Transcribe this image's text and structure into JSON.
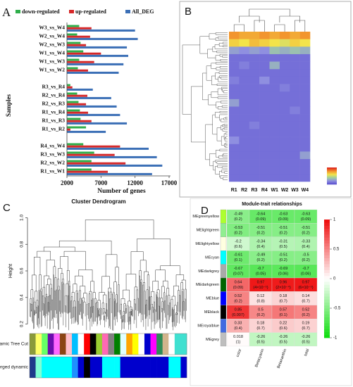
{
  "chart_data": [
    {
      "type": "bar",
      "orientation": "horizontal",
      "panel": "A",
      "ylabel": "Samples",
      "xlabel": "Number of genes",
      "categories": [
        "W3_vs_W4",
        "W2_vs_W4",
        "W2_vs_W3",
        "W1_vs_W4",
        "W1_vs_W3",
        "W1_vs_W2",
        null,
        "R3_vs_R4",
        "R2_vs_R4",
        "R2_vs_R3",
        "R1_vs_R4",
        "R1_vs_R3",
        "R1_vs_R2",
        null,
        "R4_vs_W4",
        "R3_vs_W3",
        "R2_vs_W2",
        "R1_vs_W1"
      ],
      "series": [
        {
          "name": "down-regulated",
          "color": "#2fae4a",
          "values": [
            3800,
            3500,
            4000,
            4400,
            3800,
            3600,
            null,
            2500,
            3500,
            3700,
            3900,
            4000,
            4800,
            null,
            4400,
            6000,
            5600,
            5600
          ]
        },
        {
          "name": "up-regulated",
          "color": "#d62728",
          "values": [
            5600,
            5400,
            4800,
            7000,
            6000,
            5100,
            null,
            2800,
            5000,
            4800,
            5100,
            5600,
            2500,
            null,
            9800,
            9000,
            10600,
            8000
          ]
        },
        {
          "name": "All_DEG",
          "color": "#3b6fb6",
          "values": [
            12000,
            12400,
            10800,
            11000,
            10300,
            9600,
            null,
            5800,
            8500,
            9300,
            9800,
            10800,
            7700,
            null,
            14000,
            15200,
            16000,
            14500
          ]
        }
      ],
      "xlim": [
        2000,
        17000
      ],
      "xticks": [
        2000,
        7000,
        12000,
        17000
      ],
      "legend": "top"
    },
    {
      "type": "heatmap",
      "panel": "B",
      "columns": [
        "R1",
        "R2",
        "R3",
        "R4",
        "W1",
        "W2",
        "W3",
        "W4"
      ],
      "matrix": [
        [
          0.6,
          0.5,
          0.5,
          0.6,
          0.5,
          0.6,
          0.5,
          0.6
        ],
        [
          0.3,
          0.2,
          0.4,
          0.3,
          0.2,
          0.1,
          0.3,
          0.2
        ],
        [
          -0.5,
          -0.6,
          -0.5,
          -0.6,
          -0.3,
          -0.4,
          -0.3,
          -0.4
        ],
        [
          -0.8,
          -0.8,
          -0.8,
          -0.8,
          -0.8,
          -0.8,
          -0.8,
          -0.8
        ],
        [
          -0.8,
          -0.7,
          -0.8,
          -0.8,
          -0.4,
          -0.8,
          -0.8,
          -0.8
        ],
        [
          -0.8,
          -0.8,
          -0.8,
          -0.8,
          -0.8,
          -0.8,
          -0.8,
          -0.8
        ],
        [
          -0.7,
          -0.8,
          -0.8,
          -0.6,
          -0.8,
          -0.8,
          -0.8,
          -0.8
        ],
        [
          -0.8,
          -0.8,
          -0.8,
          -0.8,
          -0.8,
          -0.7,
          -0.8,
          -0.8
        ],
        [
          -0.8,
          -0.8,
          -0.8,
          -0.8,
          -0.8,
          -0.8,
          -0.8,
          -0.8
        ],
        [
          -0.5,
          -0.8,
          -0.8,
          -0.8,
          -0.8,
          -0.8,
          -0.8,
          -0.8
        ],
        [
          -0.8,
          -0.8,
          -0.8,
          -0.8,
          -0.8,
          -0.8,
          -0.7,
          -0.8
        ],
        [
          -0.8,
          -0.8,
          -0.8,
          -0.8,
          -0.8,
          -0.8,
          -0.8,
          -0.8
        ],
        [
          -0.8,
          -0.8,
          -0.7,
          -0.8,
          -0.8,
          -0.8,
          -0.8,
          -0.8
        ],
        [
          -0.8,
          -0.8,
          -0.8,
          -0.8,
          -0.8,
          -0.8,
          -0.8,
          -0.8
        ],
        [
          -0.6,
          -0.8,
          -0.8,
          -0.8,
          -0.8,
          -0.8,
          -0.8,
          -0.8
        ],
        [
          -0.8,
          -0.8,
          -0.8,
          -0.8,
          -0.8,
          -0.8,
          -0.8,
          -0.8
        ],
        [
          -0.8,
          -0.8,
          -0.8,
          -0.8,
          -0.8,
          -0.8,
          -0.8,
          -0.5
        ],
        [
          -0.8,
          -0.8,
          -0.8,
          -0.8,
          -0.8,
          -0.8,
          -0.8,
          -0.8
        ],
        [
          -0.8,
          -0.8,
          -0.8,
          -0.8,
          -0.8,
          -0.8,
          -0.8,
          -0.8
        ],
        [
          -0.8,
          -0.8,
          -0.8,
          -0.8,
          -0.8,
          -0.8,
          -0.8,
          -0.8
        ]
      ],
      "clim": [
        -1,
        1
      ],
      "colorscale": [
        "#5a4fcf",
        "#8f8fe0",
        "#9fd0a0",
        "#f2e44a",
        "#f2952e",
        "#e02a1e"
      ]
    },
    {
      "type": "dendrogram",
      "panel": "C",
      "title": "Cluster Dendrogram",
      "ylabel": "Height",
      "ylim": [
        0.15,
        1.05
      ],
      "yticks": [
        0.2,
        0.4,
        0.6,
        0.8,
        {
          "value": 1,
          "label": "1.0"
        }
      ],
      "tracks": [
        {
          "name": "ynamic Tree Cut",
          "colors": [
            "#8b9a3a",
            "#ffff66",
            "#66ff66",
            "#6a0dad",
            "#ff66ff",
            "#8b4513",
            "#ffc0cb",
            "#00bfff",
            "#ffffff",
            "#ff0000",
            "#000000",
            "#9acd32",
            "#ff69b4",
            "#808080",
            "#008000",
            "#e0ffff",
            "#ffa500",
            "#ffff00",
            "#ffffff",
            "#0000cd",
            "#ff00ff",
            "#2e8b57",
            "#d2b48c",
            "#ffffff",
            "#40e0d0",
            "#40e0d0"
          ]
        },
        {
          "name": "Merged dynamic",
          "colors": [
            "#1e3a8a",
            "#7fffd4",
            "#00ffff",
            "#00ffff",
            "#00ffff",
            "#00ffff",
            "#00ffff",
            "#1e90ff",
            "#0000cd",
            "#000000",
            "#0000cd",
            "#0000cd",
            "#00ffff",
            "#00ffff",
            "#00ffff",
            "#0000cd",
            "#0000cd",
            "#0000cd",
            "#0000cd",
            "#0000cd",
            "#0000cd",
            "#0000cd",
            "#0000cd",
            "#00ffff",
            "#00ffff",
            "#0000cd"
          ]
        }
      ]
    },
    {
      "type": "heatmap",
      "panel": "D",
      "title": "Module-trait relationships",
      "rows": [
        "MEgreenyellow",
        "MElightgreen",
        "MElightyellow",
        "MEcyan",
        "MEdarkgrey",
        "MEdarkgreen",
        "MEblue",
        "MEblack",
        "MEroyalblue",
        "MEgrey"
      ],
      "row_colors": [
        "#adff2f",
        "#90ee90",
        "#ffffe0",
        "#00ffff",
        "#a9a9a9",
        "#006400",
        "#0000ff",
        "#000000",
        "#4169e1",
        "#bebebe"
      ],
      "columns": [
        "color",
        "Betacyanin",
        "Betaxanthin",
        "total"
      ],
      "values": [
        [
          -0.49,
          -0.64,
          -0.63,
          -0.63
        ],
        [
          -0.53,
          -0.51,
          -0.51,
          -0.51
        ],
        [
          -0.2,
          -0.34,
          -0.31,
          -0.33
        ],
        [
          -0.61,
          -0.49,
          -0.51,
          -0.5
        ],
        [
          -0.67,
          -0.7,
          -0.69,
          -0.7
        ],
        [
          0.64,
          0.97,
          0.96,
          0.97
        ],
        [
          0.52,
          0.12,
          0.18,
          0.14
        ],
        [
          0.85,
          0.5,
          0.57,
          0.52
        ],
        [
          0.33,
          0.18,
          0.22,
          0.19
        ],
        [
          0.018,
          -0.26,
          -0.26,
          -0.26
        ]
      ],
      "pvalues": [
        [
          0.2,
          0.09,
          0.09,
          0.09
        ],
        [
          0.2,
          0.2,
          0.2,
          0.2
        ],
        [
          0.6,
          0.4,
          0.5,
          0.4
        ],
        [
          0.1,
          0.2,
          0.2,
          0.2
        ],
        [
          0.07,
          0.05,
          0.06,
          0.06
        ],
        [
          0.09,
          4e-05,
          0.0002,
          6e-05
        ],
        [
          0.2,
          0.8,
          0.7,
          0.7
        ],
        [
          0.007,
          0.2,
          0.1,
          0.2
        ],
        [
          0.4,
          0.7,
          0.6,
          0.7
        ],
        [
          1,
          0.5,
          0.5,
          0.5
        ]
      ],
      "pvalue_labels": [
        [
          "(0.2)",
          "(0.09)",
          "(0.09)",
          "(0.09)"
        ],
        [
          "(0.2)",
          "(0.2)",
          "(0.2)",
          "(0.2)"
        ],
        [
          "(0.6)",
          "(0.4)",
          "(0.5)",
          "(0.4)"
        ],
        [
          "(0.1)",
          "(0.2)",
          "(0.2)",
          "(0.2)"
        ],
        [
          "(0.07)",
          "(0.05)",
          "(0.06)",
          "(0.06)"
        ],
        [
          "(0.09)",
          "(4×10⁻⁵)",
          "(2×10⁻⁴)",
          "(6×10⁻⁵)"
        ],
        [
          "(0.2)",
          "(0.8)",
          "(0.7)",
          "(0.7)"
        ],
        [
          "(0.007)",
          "(0.2)",
          "(0.1)",
          "(0.2)"
        ],
        [
          "(0.4)",
          "(0.7)",
          "(0.6)",
          "(0.7)"
        ],
        [
          "(1)",
          "(0.5)",
          "(0.5)",
          "(0.5)"
        ]
      ],
      "clim": [
        -1,
        1
      ],
      "cticks": [
        -1,
        -0.5,
        0,
        0.5,
        1
      ],
      "colorscale": [
        "#11dd11",
        "#ffffff",
        "#ee1111"
      ]
    }
  ]
}
